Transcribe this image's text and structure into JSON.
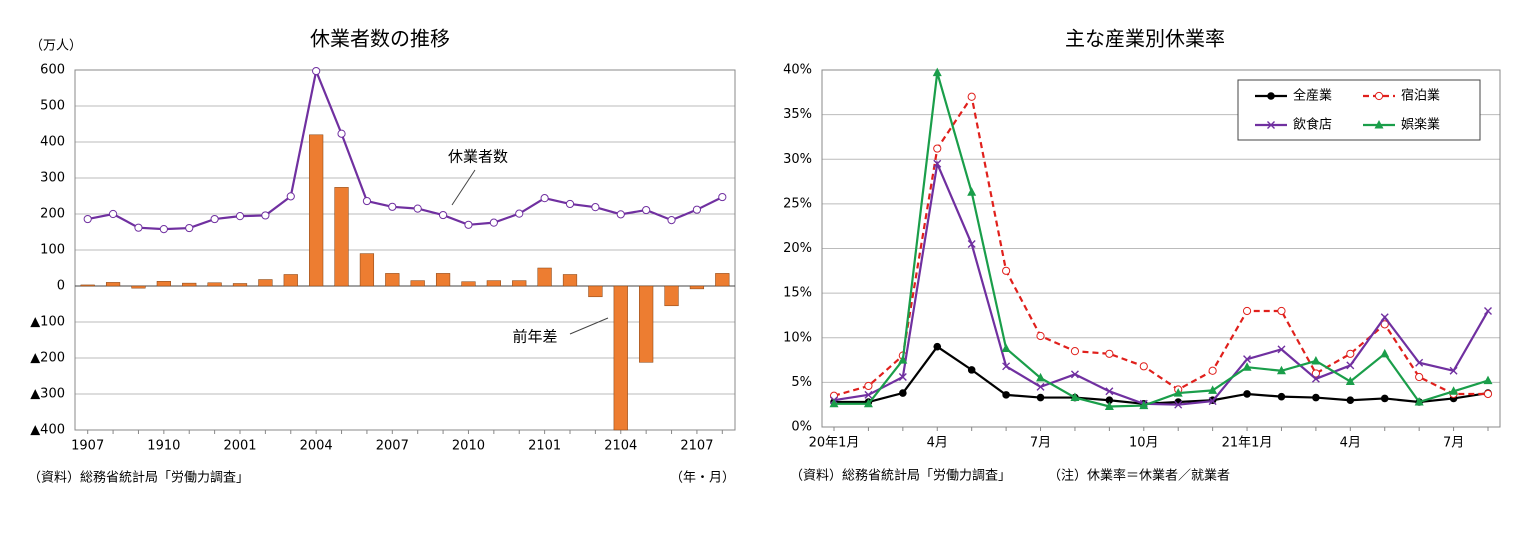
{
  "chart_data": [
    {
      "type": "combo",
      "title": "休業者数の推移",
      "y_unit": "（万人）",
      "x_unit": "（年・月）",
      "source": "（資料）総務省統計局「労働力調査」",
      "categories": [
        "1907",
        null,
        null,
        "1910",
        null,
        null,
        "2001",
        null,
        null,
        "2004",
        null,
        null,
        "2007",
        null,
        null,
        "2010",
        null,
        null,
        "2101",
        null,
        null,
        "2104",
        null,
        null,
        "2107",
        null
      ],
      "series": [
        {
          "name": "前年差",
          "type": "bar",
          "color": "#ed7d31",
          "values": [
            3,
            10,
            -6,
            13,
            8,
            9,
            7,
            18,
            32,
            420,
            274,
            90,
            35,
            15,
            35,
            12,
            15,
            15,
            50,
            32,
            -30,
            -400,
            -212,
            -55,
            -8,
            35
          ]
        },
        {
          "name": "休業者数",
          "type": "line",
          "color": "#7030a0",
          "values": [
            186,
            200,
            162,
            158,
            161,
            186,
            194,
            196,
            249,
            597,
            423,
            236,
            220,
            215,
            197,
            170,
            176,
            201,
            244,
            228,
            219,
            199,
            211,
            183,
            212,
            247
          ]
        }
      ],
      "ylim": [
        -400,
        600
      ],
      "yticks": [
        {
          "value": -400,
          "label": "▲400"
        },
        {
          "value": -300,
          "label": "▲300"
        },
        {
          "value": -200,
          "label": "▲200"
        },
        {
          "value": -100,
          "label": "▲100"
        },
        0,
        100,
        200,
        300,
        400,
        500,
        600
      ],
      "grid": true
    },
    {
      "type": "line",
      "title": "主な産業別休業率",
      "source": "（資料）総務省統計局「労働力調査」",
      "note": "（注）休業率＝休業者／就業者",
      "categories": [
        "20年1月",
        null,
        null,
        "4月",
        null,
        null,
        "7月",
        null,
        null,
        "10月",
        null,
        null,
        "21年1月",
        null,
        null,
        "4月",
        null,
        null,
        "7月",
        null
      ],
      "series": [
        {
          "name": "全産業",
          "color": "#000000",
          "marker": "dot",
          "dash": false,
          "values": [
            2.8,
            2.8,
            3.8,
            9.0,
            6.4,
            3.6,
            3.3,
            3.3,
            3.0,
            2.6,
            2.8,
            3.0,
            3.7,
            3.4,
            3.3,
            3.0,
            3.2,
            2.8,
            3.2,
            3.8
          ]
        },
        {
          "name": "宿泊業",
          "color": "#e0201c",
          "marker": "circle",
          "dash": true,
          "values": [
            3.5,
            4.6,
            8.0,
            31.2,
            37.0,
            17.5,
            10.2,
            8.5,
            8.2,
            6.8,
            4.2,
            6.3,
            13.0,
            13.0,
            6.0,
            8.2,
            11.5,
            5.6,
            3.7,
            3.7
          ]
        },
        {
          "name": "飲食店",
          "color": "#7030a0",
          "marker": "x",
          "dash": false,
          "values": [
            3.0,
            3.6,
            5.6,
            29.5,
            20.5,
            6.8,
            4.5,
            5.9,
            4.0,
            2.6,
            2.5,
            2.9,
            7.6,
            8.7,
            5.4,
            6.9,
            12.3,
            7.2,
            6.3,
            13.0
          ]
        },
        {
          "name": "娯楽業",
          "color": "#1a9e4a",
          "marker": "triangle",
          "dash": false,
          "values": [
            2.6,
            2.6,
            7.5,
            39.7,
            26.3,
            8.8,
            5.5,
            3.3,
            2.3,
            2.4,
            3.8,
            4.1,
            6.7,
            6.3,
            7.4,
            5.1,
            8.2,
            2.8,
            4.0,
            5.2
          ]
        }
      ],
      "ylim": [
        0,
        40
      ],
      "yticks": [
        {
          "value": 0,
          "label": "0%"
        },
        {
          "value": 5,
          "label": "5%"
        },
        {
          "value": 10,
          "label": "10%"
        },
        {
          "value": 15,
          "label": "15%"
        },
        {
          "value": 20,
          "label": "20%"
        },
        {
          "value": 25,
          "label": "25%"
        },
        {
          "value": 30,
          "label": "30%"
        },
        {
          "value": 35,
          "label": "35%"
        },
        {
          "value": 40,
          "label": "40%"
        }
      ],
      "grid": true,
      "legend": "top-right"
    }
  ]
}
